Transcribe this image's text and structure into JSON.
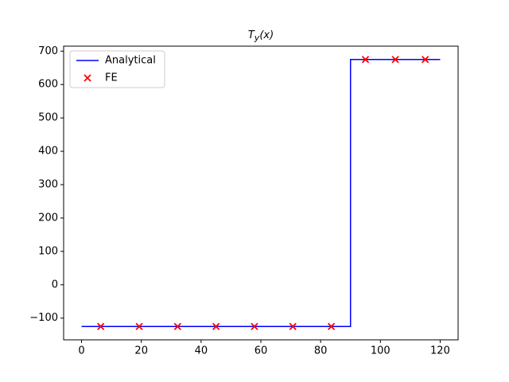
{
  "chart_data": {
    "type": "line",
    "title": "T_y(x)",
    "series": [
      {
        "name": "Analytical",
        "color": "#0000ff",
        "style": "line",
        "x": [
          0,
          90,
          90,
          120
        ],
        "values": [
          -125,
          -125,
          675,
          675
        ]
      },
      {
        "name": "FE",
        "color": "#ff0000",
        "style": "marker-x",
        "x": [
          6.43,
          19.29,
          32.14,
          45,
          57.86,
          70.71,
          83.57,
          95,
          105,
          115
        ],
        "values": [
          -125,
          -125,
          -125,
          -125,
          -125,
          -125,
          -125,
          675,
          675,
          675
        ]
      }
    ],
    "xlim": [
      -6,
      126
    ],
    "xticks": [
      0,
      20,
      40,
      60,
      80,
      100,
      120
    ],
    "ylim": [
      -165,
      715
    ],
    "yticks": [
      {
        "value": -100,
        "label": "−100"
      },
      0,
      100,
      200,
      300,
      400,
      500,
      600,
      700
    ],
    "grid": false,
    "legend": "upper left"
  }
}
